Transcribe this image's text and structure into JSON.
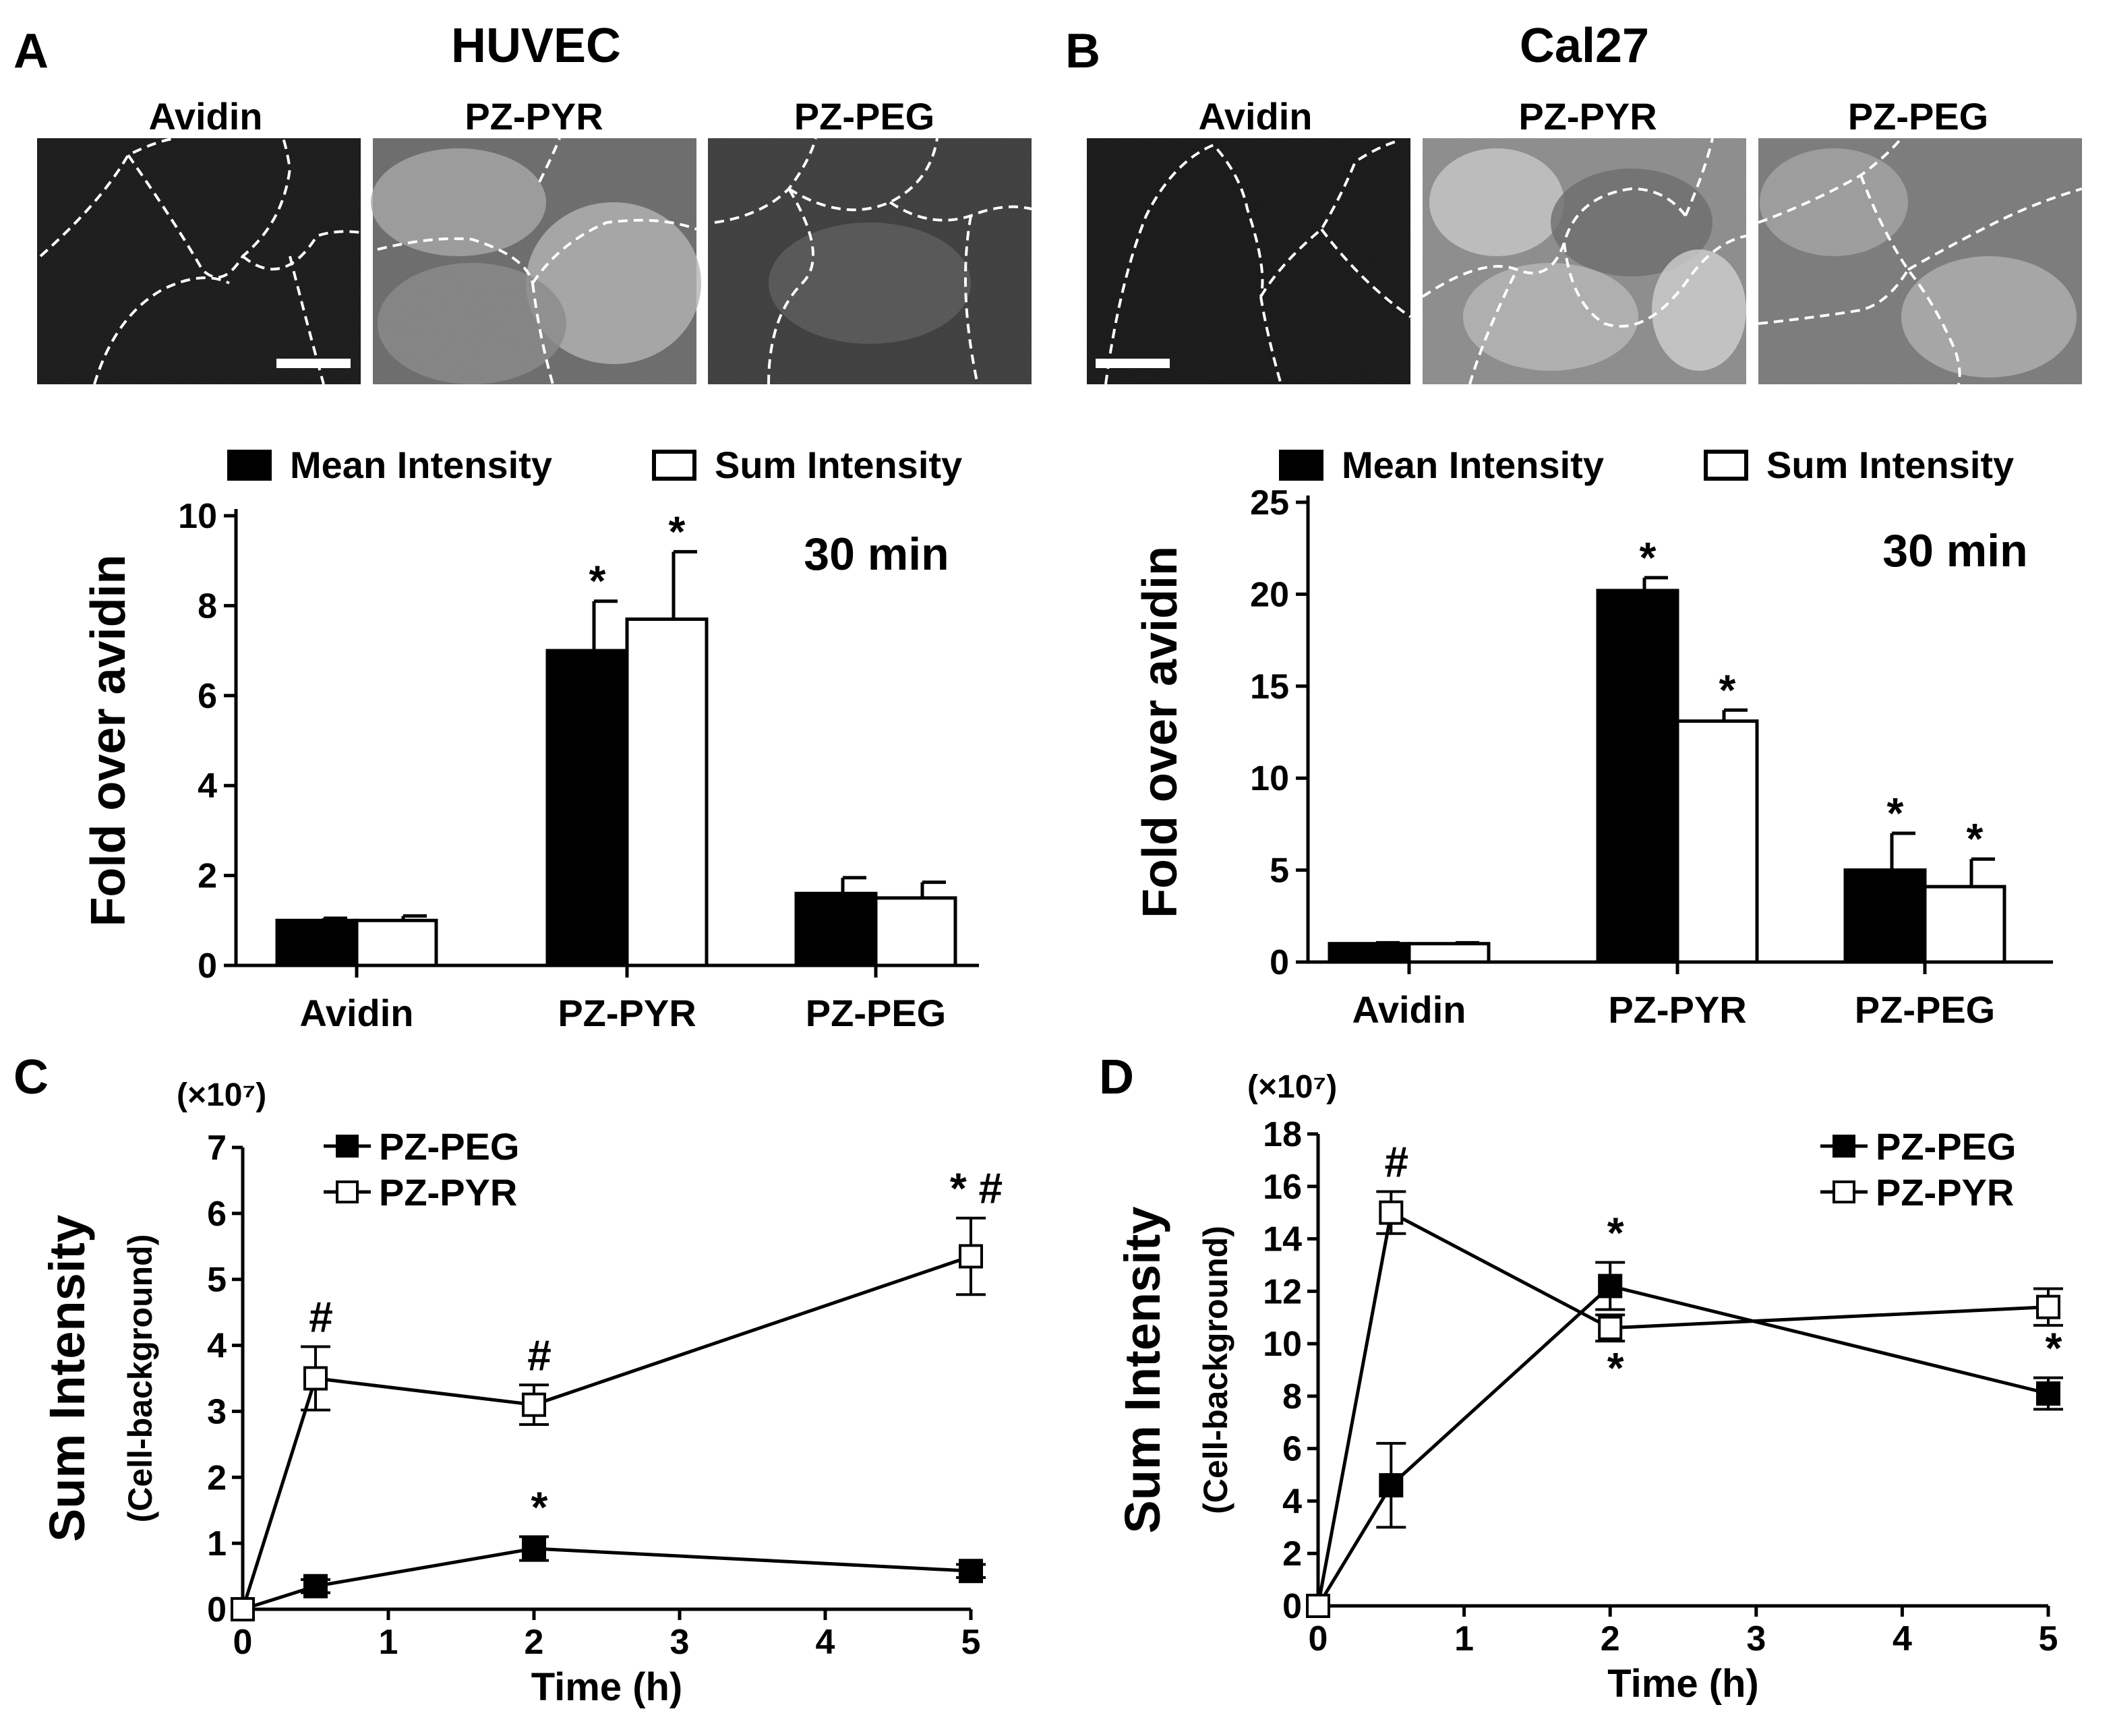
{
  "panels": {
    "A": {
      "letter": "A",
      "cell_line": "HUVEC",
      "image_labels": [
        "Avidin",
        "PZ-PYR",
        "PZ-PEG"
      ]
    },
    "B": {
      "letter": "B",
      "cell_line": "Cal27",
      "image_labels": [
        "Avidin",
        "PZ-PYR",
        "PZ-PEG"
      ]
    },
    "C": {
      "letter": "C"
    },
    "D": {
      "letter": "D"
    }
  },
  "colors": {
    "mean_fill": "#000000",
    "sum_fill": "#ffffff",
    "micrograph_bg": "#1a1a1a",
    "outline": "#ffffff"
  },
  "chart_data": [
    {
      "id": "A",
      "type": "bar",
      "categories": [
        "Avidin",
        "PZ-PYR",
        "PZ-PEG"
      ],
      "series": [
        {
          "name": "Mean Intensity",
          "values": [
            1.0,
            7.0,
            1.6
          ],
          "errors": [
            0.05,
            1.1,
            0.35
          ],
          "sig": [
            "",
            "*",
            ""
          ]
        },
        {
          "name": "Sum Intensity",
          "values": [
            1.0,
            7.7,
            1.5
          ],
          "errors": [
            0.1,
            1.5,
            0.35
          ],
          "sig": [
            "",
            "*",
            ""
          ]
        }
      ],
      "annotation": "30 min",
      "ylabel": "Fold over avidin",
      "ylim": [
        0,
        10
      ],
      "yticks": [
        0,
        2,
        4,
        6,
        8,
        10
      ],
      "legend": "top"
    },
    {
      "id": "B",
      "type": "bar",
      "categories": [
        "Avidin",
        "PZ-PYR",
        "PZ-PEG"
      ],
      "series": [
        {
          "name": "Mean Intensity",
          "values": [
            1.0,
            20.2,
            5.0
          ],
          "errors": [
            0.05,
            0.7,
            2.0
          ],
          "sig": [
            "",
            "*",
            "*"
          ]
        },
        {
          "name": "Sum Intensity",
          "values": [
            1.0,
            13.1,
            4.1
          ],
          "errors": [
            0.05,
            0.6,
            1.5
          ],
          "sig": [
            "",
            "*",
            "*"
          ]
        }
      ],
      "annotation": "30 min",
      "ylabel": "Fold over avidin",
      "ylim": [
        0,
        25
      ],
      "yticks": [
        0,
        5,
        10,
        15,
        20,
        25
      ],
      "legend": "top"
    },
    {
      "id": "C",
      "type": "line",
      "multiplier": "(×10⁷)",
      "x": [
        0,
        0.5,
        2,
        5
      ],
      "series": [
        {
          "name": "PZ-PEG",
          "marker": "filled-square",
          "values": [
            0,
            0.35,
            0.92,
            0.58
          ],
          "errors": [
            0,
            0.1,
            0.18,
            0.1
          ],
          "sig": [
            "",
            "",
            "*",
            ""
          ]
        },
        {
          "name": "PZ-PYR",
          "marker": "open-square",
          "values": [
            0,
            3.5,
            3.1,
            5.35
          ],
          "errors": [
            0,
            0.48,
            0.3,
            0.58
          ],
          "sig": [
            "",
            "#",
            "#",
            "* #"
          ]
        }
      ],
      "xlabel": "Time (h)",
      "ylabel": "Sum Intensity",
      "ylabel2": "(Cell-background)",
      "xlim": [
        0,
        5
      ],
      "xticks": [
        0,
        1,
        2,
        3,
        4,
        5
      ],
      "ylim": [
        0,
        7
      ],
      "yticks": [
        0,
        1,
        2,
        3,
        4,
        5,
        6,
        7
      ],
      "legend": "top-left"
    },
    {
      "id": "D",
      "type": "line",
      "multiplier": "(×10⁷)",
      "x": [
        0,
        0.5,
        2,
        5
      ],
      "series": [
        {
          "name": "PZ-PEG",
          "marker": "filled-square",
          "values": [
            0,
            4.6,
            12.2,
            8.1
          ],
          "errors": [
            0,
            1.6,
            0.9,
            0.6
          ],
          "sig": [
            "",
            "",
            "*",
            "*"
          ]
        },
        {
          "name": "PZ-PYR",
          "marker": "open-square",
          "values": [
            0,
            15.0,
            10.6,
            11.4
          ],
          "errors": [
            0,
            0.8,
            0.5,
            0.7
          ],
          "sig": [
            "",
            "#",
            "*",
            ""
          ]
        }
      ],
      "xlabel": "Time (h)",
      "ylabel": "Sum Intensity",
      "ylabel2": "(Cell-background)",
      "xlim": [
        0,
        5
      ],
      "xticks": [
        0,
        1,
        2,
        3,
        4,
        5
      ],
      "ylim": [
        0,
        18
      ],
      "yticks": [
        0,
        2,
        4,
        6,
        8,
        10,
        12,
        14,
        16,
        18
      ],
      "legend": "top-right"
    }
  ]
}
